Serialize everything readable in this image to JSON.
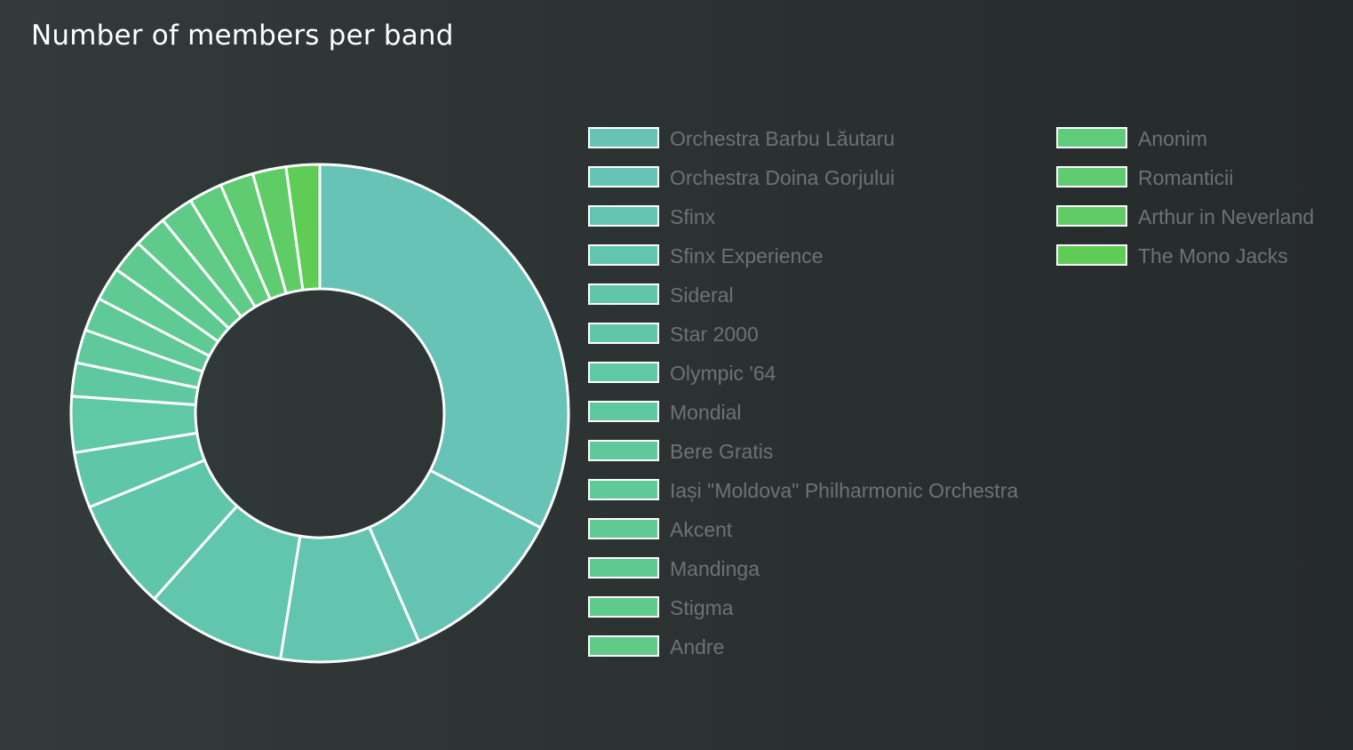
{
  "chart_data": {
    "type": "pie",
    "title": "Number of members per band",
    "categories": [
      "Orchestra Barbu Lăutaru",
      "Orchestra Doina Gorjului",
      "Sfinx",
      "Sfinx Experience",
      "Sideral",
      "Star 2000",
      "Olympic '64",
      "Mondial",
      "Bere Gratis",
      "Iași \"Moldova\" Philharmonic Orchestra",
      "Akcent",
      "Mandinga",
      "Stigma",
      "Andre",
      "Anonim",
      "Romanticii",
      "Arthur in Neverland",
      "The Mono Jacks"
    ],
    "values": [
      90,
      30,
      25,
      25,
      20,
      10,
      10,
      6,
      6,
      6,
      6,
      6,
      6,
      6,
      6,
      6,
      6,
      6
    ],
    "colors": [
      "#67c3b5",
      "#65c4b3",
      "#63c5b0",
      "#61c6ad",
      "#60c6ab",
      "#5fc7a8",
      "#5fc8a4",
      "#5fc8a0",
      "#5fc99c",
      "#5fc998",
      "#5fca94",
      "#5fca90",
      "#5fcb8b",
      "#5fcb86",
      "#5fcc7c",
      "#5fcc72",
      "#5fcc66",
      "#5ecc55"
    ],
    "legend_position": "right",
    "inner_radius_ratio": 0.5,
    "border_color": "#ffffff"
  }
}
